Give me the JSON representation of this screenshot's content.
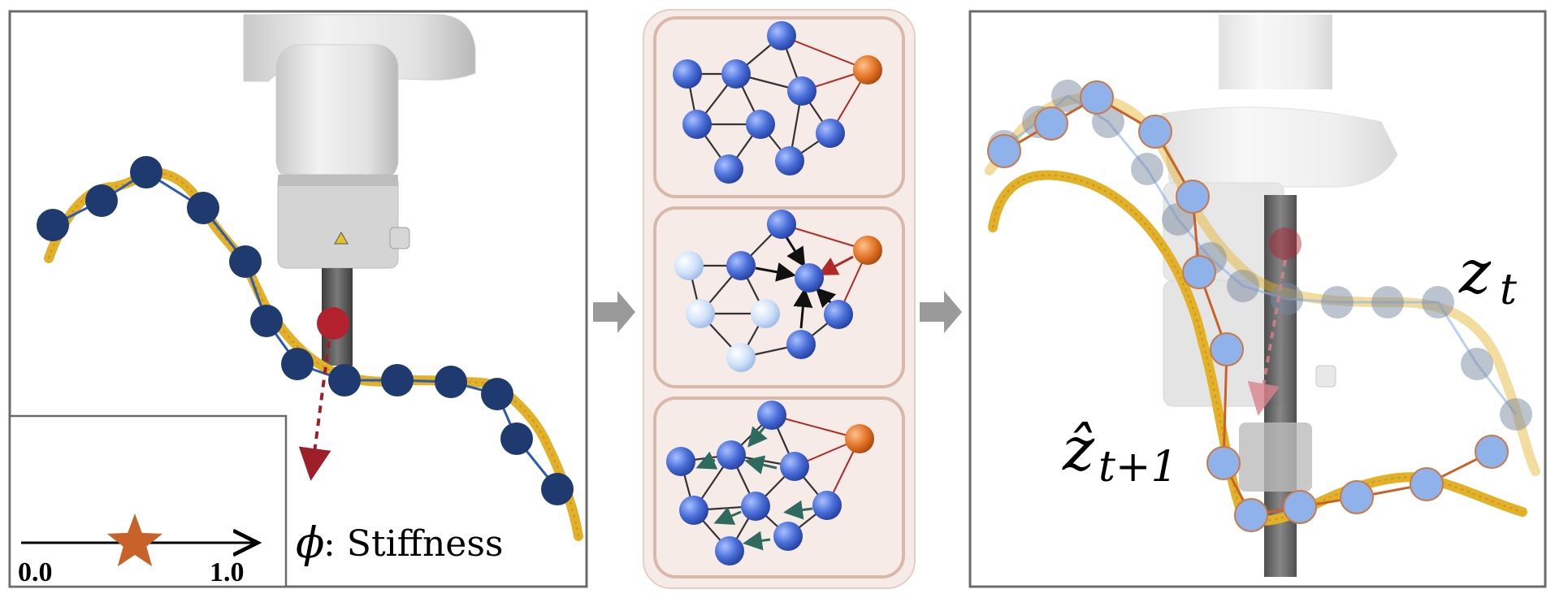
{
  "left_panel": {
    "parameter_symbol": "ϕ",
    "parameter_label": ": Stiffness",
    "slider": {
      "min_label": "0.0",
      "max_label": "1.0",
      "value": 0.5
    }
  },
  "right_panel": {
    "current_state_label": "z",
    "current_state_sub": "t",
    "predicted_state_label": "ẑ",
    "predicted_state_sub": "t+1"
  },
  "colors": {
    "node_dark": "#1f3a6e",
    "node_light": "#8fb2ea",
    "node_blue": "#4a6fd8",
    "rope": "#e3b129",
    "action_node": "#e07224",
    "gripper_point": "#b3202e",
    "panel_border": "#6b6b6b",
    "gnn_bg": "#f6ebe6",
    "gnn_card_border": "#d9b8aa",
    "arrow_gray": "#9a9a9a",
    "edge_red": "#b02a2a",
    "message_arrow_green": "#2e6b5e"
  },
  "icons": [
    "robot-arm-icon",
    "gripper-point-icon",
    "star-icon",
    "flow-arrow-icon"
  ]
}
